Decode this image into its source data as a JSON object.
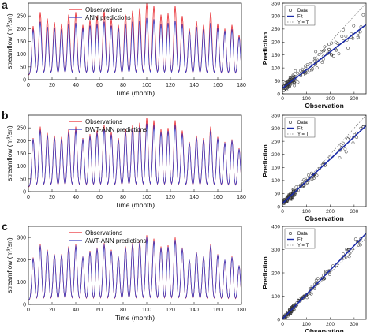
{
  "colors": {
    "observed": "#e8282e",
    "predicted": "#3a3fc4",
    "fit": "#1a2aa8",
    "identity": "#777777",
    "scatter": "#333333",
    "axis": "#222222"
  },
  "rows": [
    {
      "panel_label": "a",
      "ts": {
        "type": "line",
        "xlabel": "Time (month)",
        "ylabel": "streamflow (m³/sn)",
        "xlim": [
          0,
          180
        ],
        "ylim": [
          0,
          300
        ],
        "xticks": [
          0,
          20,
          40,
          60,
          80,
          100,
          120,
          140,
          160,
          180
        ],
        "yticks": [
          0,
          50,
          100,
          150,
          200,
          250
        ],
        "legend_position": "top-center",
        "series": [
          {
            "name": "Observations",
            "role": "observed",
            "peaks": [
              210,
              265,
              240,
              225,
              220,
              255,
              265,
              215,
              235,
              250,
              270,
              240,
              215,
              255,
              270,
              280,
              300,
              290,
              255,
              260,
              290,
              250,
              200,
              230,
              215,
              265,
              220,
              200,
              215,
              175
            ]
          },
          {
            "name": "ANN predictions",
            "role": "predicted",
            "peaks": [
              195,
              225,
              205,
              200,
              195,
              215,
              220,
              200,
              210,
              215,
              225,
              210,
              200,
              215,
              225,
              230,
              240,
              235,
              215,
              220,
              230,
              215,
              190,
              205,
              195,
              220,
              200,
              190,
              195,
              165
            ]
          }
        ]
      },
      "sc": {
        "type": "scatter",
        "xlabel": "Observation",
        "ylabel": "Prediction",
        "xlim": [
          0,
          350
        ],
        "ylim": [
          0,
          350
        ],
        "xticks": [
          0,
          100,
          200,
          300
        ],
        "yticks": [
          0,
          50,
          100,
          150,
          200,
          250,
          300,
          350
        ],
        "legend_position": "top-left",
        "legend": [
          "Data",
          "Fit",
          "Y = T"
        ],
        "fit": {
          "slope": 0.7,
          "intercept": 22
        },
        "spread": 40,
        "seed": 11
      }
    },
    {
      "panel_label": "b",
      "ts": {
        "type": "line",
        "xlabel": "Time (month)",
        "ylabel": "streamflow (m³/sn)",
        "xlim": [
          0,
          180
        ],
        "ylim": [
          0,
          300
        ],
        "xticks": [
          0,
          20,
          40,
          60,
          80,
          100,
          120,
          140,
          160,
          180
        ],
        "yticks": [
          0,
          50,
          100,
          150,
          200,
          250
        ],
        "legend_position": "top-center",
        "series": [
          {
            "name": "Observations",
            "role": "observed",
            "peaks": [
              210,
              255,
              230,
              220,
              215,
              245,
              255,
              210,
              225,
              240,
              260,
              235,
              210,
              245,
              260,
              270,
              290,
              280,
              245,
              250,
              280,
              240,
              195,
              220,
              210,
              255,
              215,
              195,
              205,
              170
            ]
          },
          {
            "name": "DWT-ANN predictions",
            "role": "predicted",
            "peaks": [
              205,
              240,
              220,
              210,
              205,
              230,
              240,
              205,
              215,
              228,
              245,
              222,
              202,
              232,
              245,
              252,
              265,
              258,
              232,
              236,
              258,
              226,
              190,
              210,
              202,
              238,
              207,
              190,
              198,
              165
            ]
          }
        ]
      },
      "sc": {
        "type": "scatter",
        "xlabel": "Observation",
        "ylabel": "Prediction",
        "xlim": [
          0,
          350
        ],
        "ylim": [
          0,
          350
        ],
        "xticks": [
          0,
          100,
          200,
          300
        ],
        "yticks": [
          0,
          50,
          100,
          150,
          200,
          250,
          300,
          350
        ],
        "legend_position": "top-left",
        "legend": [
          "Data",
          "Fit",
          "Y = T"
        ],
        "fit": {
          "slope": 0.85,
          "intercept": 12
        },
        "spread": 24,
        "seed": 23
      }
    },
    {
      "panel_label": "c",
      "ts": {
        "type": "line",
        "xlabel": "Time (month)",
        "ylabel": "streamflow (m³/sn)",
        "xlim": [
          0,
          180
        ],
        "ylim": [
          0,
          350
        ],
        "xticks": [
          0,
          20,
          40,
          60,
          80,
          100,
          120,
          140,
          160,
          180
        ],
        "yticks": [
          0,
          100,
          200,
          300
        ],
        "legend_position": "top-center",
        "series": [
          {
            "name": "Observations",
            "role": "observed",
            "peaks": [
              210,
              270,
              245,
              225,
              225,
              260,
              270,
              215,
              240,
              255,
              275,
              245,
              215,
              260,
              275,
              285,
              310,
              295,
              260,
              265,
              300,
              255,
              200,
              235,
              215,
              270,
              225,
              200,
              215,
              175
            ]
          },
          {
            "name": "AWT-ANN predictions",
            "role": "predicted",
            "peaks": [
              205,
              262,
              238,
              220,
              220,
              252,
              262,
              212,
              234,
              248,
              266,
              238,
              212,
              252,
              266,
              276,
              298,
              284,
              252,
              256,
              288,
              248,
              198,
              230,
              212,
              262,
              220,
              198,
              210,
              172
            ]
          }
        ]
      },
      "sc": {
        "type": "scatter",
        "xlabel": "Observation",
        "ylabel": "Prediction",
        "xlim": [
          0,
          350
        ],
        "ylim": [
          0,
          400
        ],
        "xticks": [
          0,
          100,
          200,
          300
        ],
        "yticks": [
          0,
          100,
          200,
          300,
          400
        ],
        "legend_position": "top-left",
        "legend": [
          "Data",
          "Fit",
          "Y = T"
        ],
        "fit": {
          "slope": 1.05,
          "intercept": 2
        },
        "spread": 22,
        "seed": 37
      }
    }
  ]
}
